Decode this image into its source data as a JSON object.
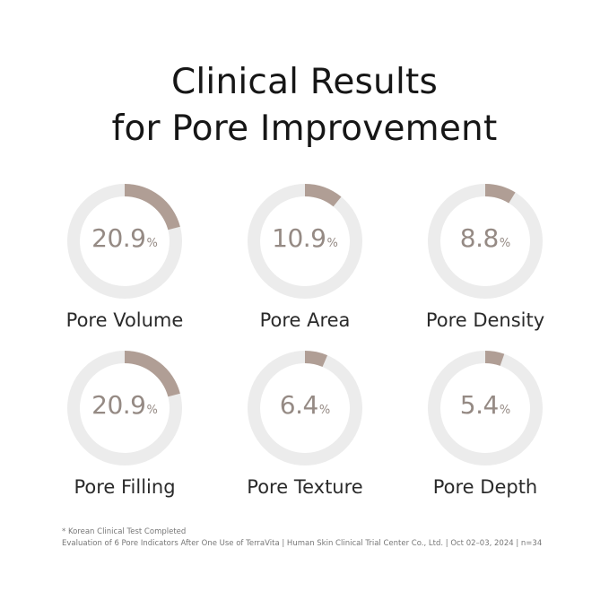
{
  "header": {
    "title_line1": "Clinical Results",
    "title_line2": "for Pore Improvement"
  },
  "colors": {
    "track": "#ececec",
    "arc": "#b09e95",
    "value_text": "#958a84"
  },
  "chart_data": {
    "type": "donut",
    "unit": "%",
    "max": 100,
    "items": [
      {
        "label": "Pore Volume",
        "value": 20.9,
        "display": "20.9"
      },
      {
        "label": "Pore Area",
        "value": 10.9,
        "display": "10.9"
      },
      {
        "label": "Pore Density",
        "value": 8.8,
        "display": "8.8"
      },
      {
        "label": "Pore Filling",
        "value": 20.9,
        "display": "20.9"
      },
      {
        "label": "Pore Texture",
        "value": 6.4,
        "display": "6.4"
      },
      {
        "label": "Pore Depth",
        "value": 5.4,
        "display": "5.4"
      }
    ]
  },
  "footnote": {
    "line1": "* Korean Clinical Test Completed",
    "line2": "Evaluation of 6 Pore Indicators After One Use of TerraVita  | Human Skin Clinical Trial Center Co., Ltd. | Oct 02–03, 2024 | n=34"
  }
}
